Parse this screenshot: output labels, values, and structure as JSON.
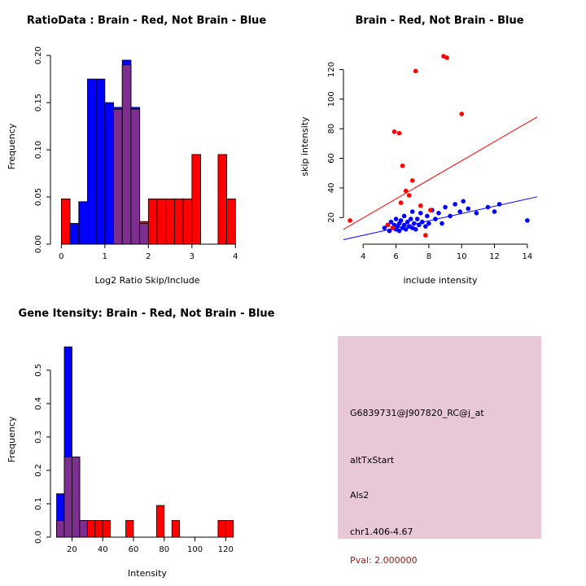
{
  "page": {
    "background": "#FFFFFF"
  },
  "colors": {
    "brain": "#FF0000",
    "not_brain": "#0000FF",
    "overlap": "#7D2E8E"
  },
  "chart_data": [
    {
      "type": "bar",
      "subtype": "overlaid_histogram",
      "title": "RatioData : Brain - Red, Not Brain - Blue",
      "xlabel": "Log2 Ratio Skip/Include",
      "ylabel": "Frequency",
      "bin_start": 0.0,
      "bin_width": 0.2,
      "xlim": [
        -0.25,
        4.2
      ],
      "ylim": [
        0,
        0.207
      ],
      "xticks": [
        0,
        1,
        2,
        3,
        4
      ],
      "yticks": [
        0,
        0.05,
        0.1,
        0.15,
        0.2
      ],
      "yticklabels": [
        "0.00",
        "0.05",
        "0.10",
        "0.15",
        "0.20"
      ],
      "overlap_color": "#7D2E8E",
      "series": [
        {
          "name": "Not Brain",
          "color": "#0000FF",
          "values": [
            0,
            0.022,
            0.045,
            0.175,
            0.175,
            0.15,
            0.145,
            0.195,
            0.145,
            0.022,
            0,
            0,
            0,
            0,
            0,
            0,
            0,
            0,
            0,
            0
          ]
        },
        {
          "name": "Brain",
          "color": "#FF0000",
          "values": [
            0.048,
            0,
            0,
            0,
            0,
            0,
            0.143,
            0.19,
            0.143,
            0.024,
            0.048,
            0.048,
            0.048,
            0.048,
            0.048,
            0.095,
            0,
            0,
            0.095,
            0.048
          ]
        }
      ]
    },
    {
      "type": "scatter",
      "title": "Brain - Red, Not Brain - Blue",
      "xlabel": "include intensity",
      "ylabel": "skip intensity",
      "xlim": [
        2.8,
        14.6
      ],
      "ylim": [
        2,
        134
      ],
      "xticks": [
        4,
        6,
        8,
        10,
        12,
        14
      ],
      "yticks": [
        20,
        40,
        60,
        80,
        100,
        120
      ],
      "series": [
        {
          "name": "Not Brain",
          "color": "#0000FF",
          "line": [
            [
              2.8,
              5
            ],
            [
              14.6,
              34
            ]
          ],
          "points": [
            [
              5.3,
              13
            ],
            [
              5.5,
              15
            ],
            [
              5.6,
              11
            ],
            [
              5.7,
              17
            ],
            [
              5.8,
              13
            ],
            [
              5.9,
              15
            ],
            [
              6.0,
              12
            ],
            [
              6.0,
              19
            ],
            [
              6.1,
              14
            ],
            [
              6.2,
              16
            ],
            [
              6.2,
              11
            ],
            [
              6.3,
              18
            ],
            [
              6.4,
              13
            ],
            [
              6.5,
              15
            ],
            [
              6.5,
              21
            ],
            [
              6.6,
              12
            ],
            [
              6.7,
              17
            ],
            [
              6.8,
              14
            ],
            [
              6.9,
              19
            ],
            [
              7.0,
              13
            ],
            [
              7.0,
              24
            ],
            [
              7.1,
              16
            ],
            [
              7.2,
              12
            ],
            [
              7.3,
              19
            ],
            [
              7.4,
              15
            ],
            [
              7.5,
              23
            ],
            [
              7.6,
              17
            ],
            [
              7.8,
              14
            ],
            [
              7.9,
              21
            ],
            [
              8.0,
              16
            ],
            [
              8.2,
              25
            ],
            [
              8.4,
              19
            ],
            [
              8.6,
              23
            ],
            [
              8.8,
              16
            ],
            [
              9.0,
              27
            ],
            [
              9.3,
              21
            ],
            [
              9.6,
              29
            ],
            [
              9.9,
              24
            ],
            [
              10.1,
              31
            ],
            [
              10.4,
              26
            ],
            [
              10.9,
              23
            ],
            [
              11.6,
              27
            ],
            [
              12.0,
              24
            ],
            [
              12.3,
              29
            ],
            [
              14.0,
              18
            ]
          ]
        },
        {
          "name": "Brain",
          "color": "#FF0000",
          "line": [
            [
              2.8,
              12
            ],
            [
              14.6,
              88
            ]
          ],
          "points": [
            [
              3.2,
              18
            ],
            [
              5.5,
              15
            ],
            [
              5.8,
              13
            ],
            [
              5.9,
              78
            ],
            [
              6.2,
              77
            ],
            [
              6.3,
              30
            ],
            [
              6.4,
              55
            ],
            [
              6.6,
              38
            ],
            [
              6.8,
              35
            ],
            [
              7.0,
              45
            ],
            [
              7.2,
              119
            ],
            [
              7.5,
              28
            ],
            [
              7.8,
              8
            ],
            [
              8.1,
              25
            ],
            [
              8.9,
              129
            ],
            [
              9.1,
              128
            ],
            [
              10.0,
              90
            ]
          ]
        }
      ]
    },
    {
      "type": "bar",
      "subtype": "overlaid_histogram",
      "title": "Gene Itensity: Brain - Red, Not Brain - Blue",
      "xlabel": "Intensity",
      "ylabel": "Frequency",
      "bin_start": 10,
      "bin_width": 5,
      "xlim": [
        6,
        132
      ],
      "ylim": [
        0,
        0.585
      ],
      "xticks": [
        20,
        40,
        60,
        80,
        100,
        120
      ],
      "yticks": [
        0,
        0.1,
        0.2,
        0.3,
        0.4,
        0.5
      ],
      "yticklabels": [
        "0.0",
        "0.1",
        "0.2",
        "0.3",
        "0.4",
        "0.5"
      ],
      "overlap_color": "#7D2E8E",
      "series": [
        {
          "name": "Not Brain",
          "color": "#0000FF",
          "values": [
            0.13,
            0.57,
            0.24,
            0.05,
            0,
            0,
            0,
            0,
            0,
            0,
            0,
            0,
            0,
            0,
            0,
            0,
            0,
            0,
            0,
            0,
            0,
            0,
            0,
            0
          ]
        },
        {
          "name": "Brain",
          "color": "#FF0000",
          "values": [
            0.05,
            0.24,
            0.24,
            0.05,
            0.05,
            0.05,
            0.05,
            0,
            0,
            0.05,
            0,
            0,
            0,
            0.095,
            0,
            0.05,
            0,
            0,
            0,
            0,
            0,
            0.05,
            0.05,
            0
          ]
        }
      ]
    }
  ],
  "info_panel": {
    "background": "#E8C7D7",
    "probe_id": "G6839731@J907820_RC@j_at",
    "event_type": "altTxStart",
    "gene_symbol": "Als2",
    "locus": "chr1.406-4.67",
    "pval": "Pval: 2.000000",
    "pval_color": "#8B1A1A"
  }
}
